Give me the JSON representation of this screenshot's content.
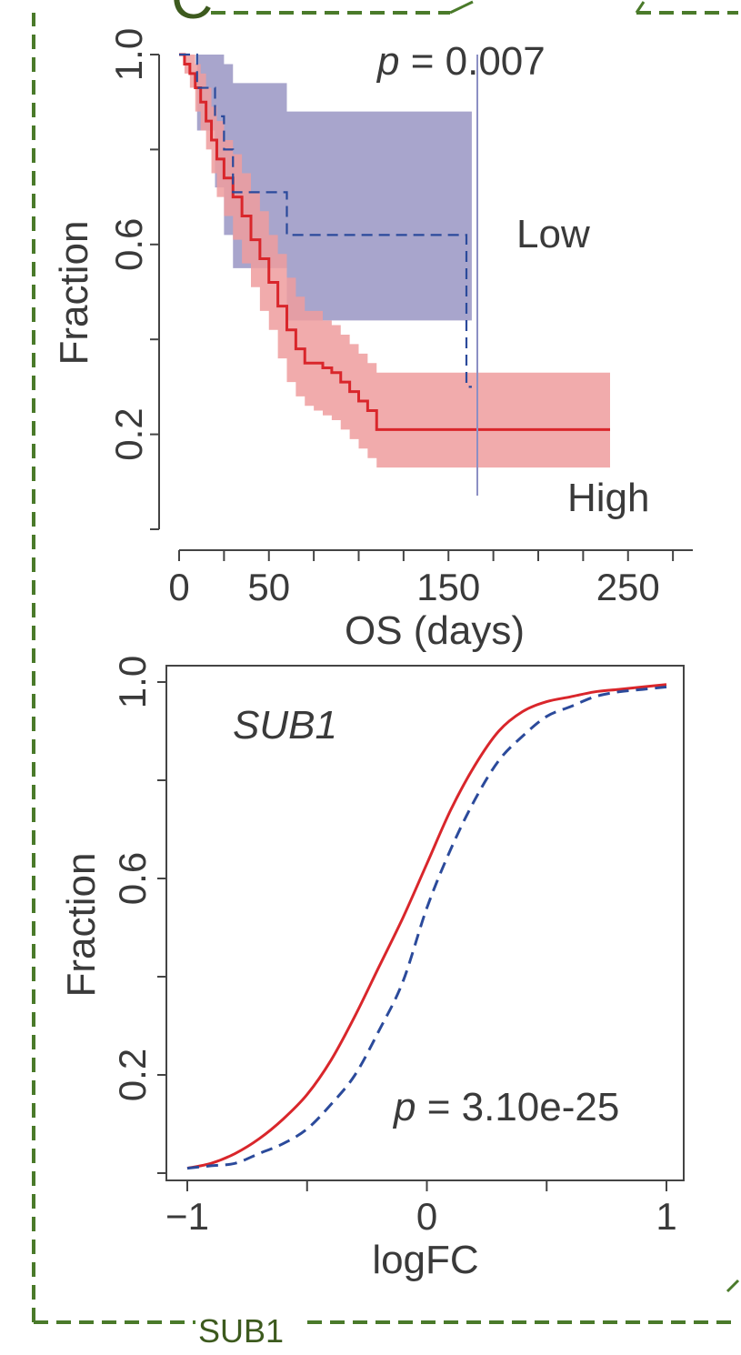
{
  "panel_letter": "C",
  "caption": "SUB1",
  "colors": {
    "high": "#d9262b",
    "low": "#2b4a9b",
    "frame": "#4a7a2a",
    "high_band": "#ee9c9e",
    "low_band": "#9e9bc6"
  },
  "chart_data": [
    {
      "type": "line",
      "subtype": "kaplan-meier",
      "title": "",
      "xlabel": "OS (days)",
      "ylabel": "Fraction",
      "xlim": [
        0,
        280
      ],
      "ylim": [
        0,
        1
      ],
      "x_ticks": [
        0,
        50,
        100,
        150,
        200,
        250
      ],
      "x_tick_labels": [
        "0",
        "50",
        "",
        "150",
        "",
        "250"
      ],
      "y_ticks": [
        0,
        0.2,
        0.4,
        0.6,
        0.8,
        1.0
      ],
      "y_tick_labels": [
        "",
        "0.2",
        "",
        "0.6",
        "",
        "1.0"
      ],
      "annotation": "p = 0.007",
      "annotation_p": "p",
      "annotation_value": " = 0.007",
      "grid": false,
      "series": [
        {
          "name": "High",
          "style": "solid",
          "x": [
            0,
            3,
            6,
            9,
            12,
            15,
            18,
            21,
            25,
            30,
            35,
            40,
            45,
            50,
            55,
            60,
            65,
            70,
            75,
            80,
            85,
            90,
            95,
            100,
            105,
            110,
            160,
            240
          ],
          "y": [
            1.0,
            0.98,
            0.96,
            0.93,
            0.9,
            0.86,
            0.82,
            0.78,
            0.74,
            0.7,
            0.66,
            0.61,
            0.57,
            0.52,
            0.47,
            0.42,
            0.38,
            0.35,
            0.35,
            0.34,
            0.33,
            0.31,
            0.29,
            0.27,
            0.25,
            0.21,
            0.21,
            0.21
          ],
          "ci_lower": [
            1.0,
            0.96,
            0.93,
            0.88,
            0.84,
            0.8,
            0.75,
            0.7,
            0.66,
            0.61,
            0.56,
            0.51,
            0.46,
            0.42,
            0.36,
            0.31,
            0.28,
            0.26,
            0.25,
            0.24,
            0.23,
            0.21,
            0.19,
            0.17,
            0.15,
            0.13,
            0.13,
            0.13
          ],
          "ci_upper": [
            1.0,
            1.0,
            1.0,
            0.98,
            0.96,
            0.93,
            0.89,
            0.86,
            0.82,
            0.79,
            0.75,
            0.71,
            0.67,
            0.62,
            0.58,
            0.53,
            0.49,
            0.46,
            0.46,
            0.44,
            0.43,
            0.41,
            0.39,
            0.37,
            0.35,
            0.33,
            0.33,
            0.33
          ]
        },
        {
          "name": "Low",
          "style": "dashed",
          "x": [
            0,
            10,
            20,
            25,
            30,
            60,
            160,
            163
          ],
          "y": [
            1.0,
            0.93,
            0.87,
            0.8,
            0.71,
            0.62,
            0.3,
            0.3
          ],
          "ci_lower": [
            1.0,
            0.84,
            0.72,
            0.62,
            0.55,
            0.44,
            0.44,
            0.44
          ],
          "ci_upper": [
            1.0,
            1.0,
            1.0,
            0.98,
            0.94,
            0.88,
            0.88,
            0.88
          ]
        }
      ],
      "legend": [
        {
          "label": "Low",
          "placement": "right-middle"
        },
        {
          "label": "High",
          "placement": "bottom-right"
        }
      ]
    },
    {
      "type": "line",
      "subtype": "cumulative-distribution",
      "title": "SUB1",
      "xlabel": "logFC",
      "ylabel": "Fraction",
      "xlim": [
        -1,
        1
      ],
      "ylim": [
        0,
        1
      ],
      "x_ticks": [
        -1,
        -0.5,
        0,
        0.5,
        1
      ],
      "x_tick_labels": [
        "−1",
        "",
        "0",
        "",
        "1"
      ],
      "y_ticks": [
        0,
        0.2,
        0.4,
        0.6,
        0.8,
        1.0
      ],
      "y_tick_labels": [
        "",
        "0.2",
        "",
        "0.6",
        "",
        "1.0"
      ],
      "annotation": "p = 3.10e-25",
      "annotation_p": "p",
      "annotation_value": " = 3.10e-25",
      "grid": false,
      "series": [
        {
          "style": "solid",
          "x": [
            -1,
            -0.9,
            -0.8,
            -0.7,
            -0.6,
            -0.5,
            -0.4,
            -0.3,
            -0.2,
            -0.1,
            0,
            0.1,
            0.2,
            0.3,
            0.4,
            0.5,
            0.6,
            0.7,
            0.8,
            0.9,
            1.0
          ],
          "y": [
            0.01,
            0.02,
            0.04,
            0.07,
            0.11,
            0.16,
            0.23,
            0.32,
            0.42,
            0.52,
            0.63,
            0.74,
            0.83,
            0.9,
            0.94,
            0.96,
            0.97,
            0.98,
            0.985,
            0.99,
            0.995
          ]
        },
        {
          "style": "dashed",
          "x": [
            -1,
            -0.9,
            -0.8,
            -0.7,
            -0.6,
            -0.5,
            -0.4,
            -0.3,
            -0.2,
            -0.1,
            0,
            0.1,
            0.2,
            0.3,
            0.4,
            0.5,
            0.6,
            0.7,
            0.8,
            0.9,
            1.0
          ],
          "y": [
            0.01,
            0.015,
            0.02,
            0.04,
            0.06,
            0.09,
            0.14,
            0.2,
            0.29,
            0.39,
            0.54,
            0.66,
            0.76,
            0.84,
            0.89,
            0.93,
            0.95,
            0.97,
            0.98,
            0.985,
            0.99
          ]
        }
      ]
    }
  ]
}
